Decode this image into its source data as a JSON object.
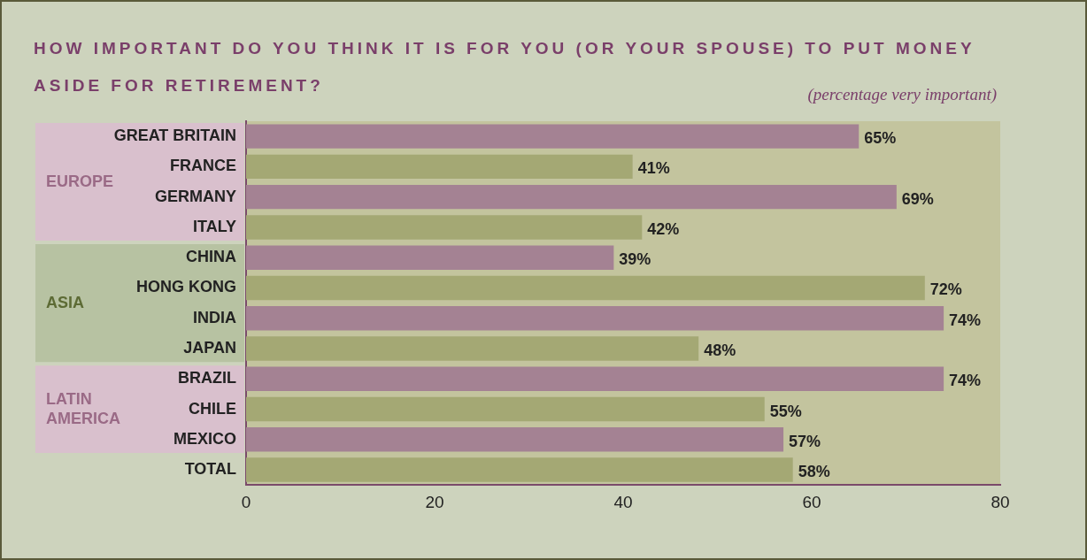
{
  "chart_data": {
    "type": "bar",
    "orientation": "horizontal",
    "title": "HOW IMPORTANT DO YOU THINK IT IS FOR YOU (OR YOUR SPOUSE) TO PUT MONEY ASIDE FOR RETIREMENT?",
    "subtitle": "(percentage very important)",
    "categories": [
      "GREAT BRITAIN",
      "FRANCE",
      "GERMANY",
      "ITALY",
      "CHINA",
      "HONG KONG",
      "INDIA",
      "JAPAN",
      "BRAZIL",
      "CHILE",
      "MEXICO",
      "TOTAL"
    ],
    "values": [
      65,
      41,
      69,
      42,
      39,
      72,
      74,
      48,
      74,
      55,
      57,
      58
    ],
    "colors": [
      "#a48293",
      "#a4a874",
      "#a48293",
      "#a4a874",
      "#a48293",
      "#a4a874",
      "#a48293",
      "#a4a874",
      "#a48293",
      "#a4a874",
      "#a48293",
      "#a4a874"
    ],
    "value_labels": [
      "65%",
      "41%",
      "69%",
      "42%",
      "39%",
      "72%",
      "74%",
      "48%",
      "74%",
      "55%",
      "57%",
      "58%"
    ],
    "xlim": [
      0,
      80
    ],
    "xticks": [
      0,
      20,
      40,
      60,
      80
    ],
    "grid": false,
    "legend": false,
    "annotations": [
      "EUROPE",
      "ASIA",
      "LATIN AMERICA"
    ]
  }
}
